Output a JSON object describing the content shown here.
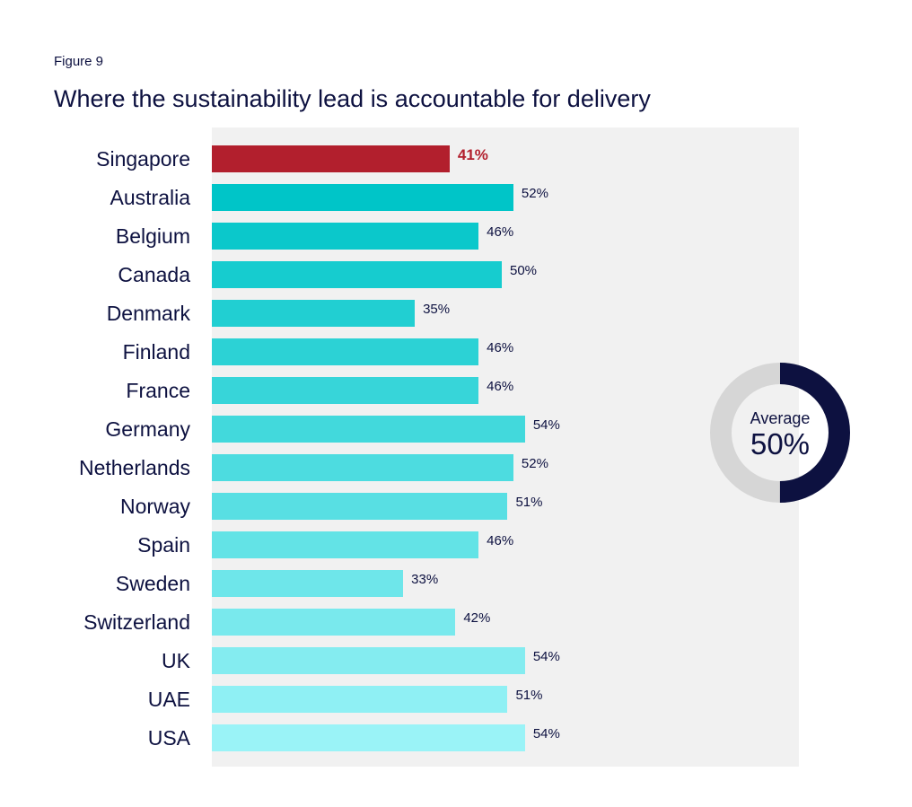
{
  "figure_label": "Figure 9",
  "chart_data": {
    "type": "bar",
    "orientation": "horizontal",
    "title": "Where the sustainability lead is accountable for delivery",
    "categories": [
      "Singapore",
      "Australia",
      "Belgium",
      "Canada",
      "Denmark",
      "Finland",
      "France",
      "Germany",
      "Netherlands",
      "Norway",
      "Spain",
      "Sweden",
      "Switzerland",
      "UK",
      "UAE",
      "USA"
    ],
    "values": [
      41,
      52,
      46,
      50,
      35,
      46,
      46,
      54,
      52,
      51,
      46,
      33,
      42,
      54,
      51,
      54
    ],
    "value_labels": [
      "41%",
      "52%",
      "46%",
      "50%",
      "35%",
      "46%",
      "46%",
      "54%",
      "52%",
      "51%",
      "46%",
      "33%",
      "42%",
      "54%",
      "51%",
      "54%"
    ],
    "highlight_category": "Singapore",
    "highlight_color": "#b21f2d",
    "bar_color_start": "#00c5c8",
    "bar_color_end": "#9af3f7",
    "xlim": [
      0,
      100
    ],
    "grid": false,
    "average": {
      "caption": "Average",
      "value": 50,
      "label": "50%",
      "ring_color": "#0d1140",
      "track_color": "#d6d6d6"
    }
  }
}
